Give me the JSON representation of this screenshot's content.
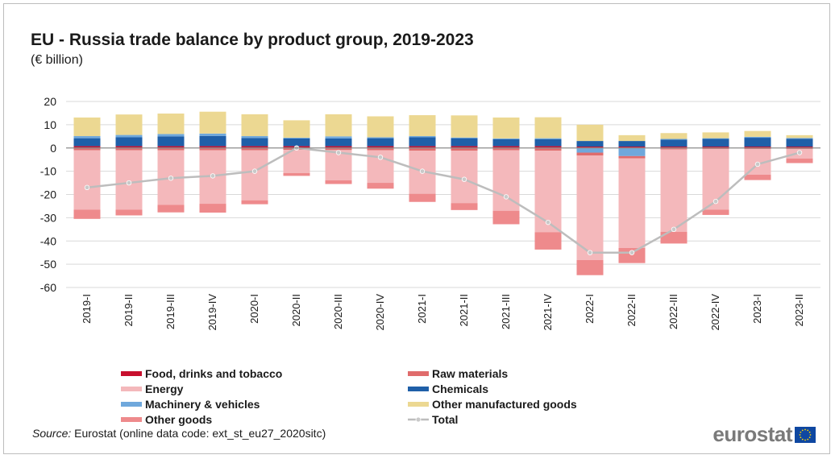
{
  "header": {
    "title": "EU - Russia trade balance by product group, 2019-2023",
    "subtitle": "(€ billion)"
  },
  "source": {
    "label": "Source:",
    "text": " Eurostat (online data code: ext_st_eu27_2020sitc)"
  },
  "logo": {
    "text": "eurostat",
    "flag_icon": "eu-flag-icon"
  },
  "chart_data": {
    "type": "bar",
    "stacked": true,
    "title": "EU - Russia trade balance by product group, 2019-2023",
    "subtitle": "(€ billion)",
    "xlabel": "",
    "ylabel": "",
    "ylim": [
      -60,
      20
    ],
    "yticks": [
      20,
      10,
      0,
      -10,
      -20,
      -30,
      -40,
      -50,
      -60
    ],
    "grid": true,
    "legend_position": "bottom",
    "categories": [
      "2019-I",
      "2019-II",
      "2019-III",
      "2019-IV",
      "2020-I",
      "2020-II",
      "2020-III",
      "2020-IV",
      "2021-I",
      "2021-II",
      "2021-III",
      "2021-IV",
      "2022-I",
      "2022-II",
      "2022-III",
      "2022-IV",
      "2023-I",
      "2023-II"
    ],
    "series": [
      {
        "name": "Food, drinks and tobacco",
        "kind": "bar",
        "color": "#c8102e",
        "values": [
          0.8,
          0.8,
          0.8,
          0.8,
          0.8,
          0.8,
          0.8,
          0.8,
          0.8,
          0.8,
          0.8,
          0.8,
          0.6,
          0.6,
          0.6,
          0.6,
          0.6,
          0.6
        ]
      },
      {
        "name": "Chemicals",
        "kind": "bar",
        "color": "#1f5fa8",
        "values": [
          3.4,
          3.8,
          4.2,
          4.4,
          3.5,
          3.3,
          3.3,
          3.4,
          3.8,
          3.4,
          3.0,
          3.0,
          2.4,
          2.4,
          3.0,
          3.3,
          3.8,
          3.4
        ]
      },
      {
        "name": "Machinery & vehicles",
        "kind": "bar",
        "color": "#6fa8dc",
        "values": [
          0.9,
          1.0,
          1.0,
          1.0,
          0.8,
          0.3,
          0.9,
          0.4,
          0.5,
          0.3,
          0.3,
          0.4,
          -2.0,
          -3.5,
          0.3,
          0.3,
          0.4,
          0.3
        ]
      },
      {
        "name": "Other manufactured goods",
        "kind": "bar",
        "color": "#ecd892",
        "values": [
          8.0,
          8.8,
          8.8,
          9.4,
          9.4,
          7.5,
          9.5,
          9.0,
          9.0,
          9.5,
          9.0,
          9.0,
          7.0,
          2.5,
          2.5,
          2.5,
          2.5,
          1.2
        ]
      },
      {
        "name": "Raw materials",
        "kind": "bar",
        "color": "#e06c6c",
        "values": [
          -1.0,
          -1.0,
          -1.0,
          -1.0,
          -1.0,
          -0.8,
          -0.9,
          -1.0,
          -1.2,
          -1.2,
          -1.0,
          -1.2,
          -1.2,
          -1.0,
          -0.6,
          -0.5,
          -0.5,
          -0.5
        ]
      },
      {
        "name": "Energy",
        "kind": "bar",
        "color": "#f4b8bb",
        "values": [
          -25.5,
          -25.5,
          -23.5,
          -23.0,
          -21.5,
          -10.0,
          -13.0,
          -14.0,
          -18.5,
          -22.5,
          -26.0,
          -35.0,
          -45.0,
          -38.5,
          -35.5,
          -26.0,
          -11.0,
          -4.0
        ]
      },
      {
        "name": "Other goods",
        "kind": "bar",
        "color": "#ee8a8c",
        "values": [
          -4.0,
          -2.5,
          -3.2,
          -3.8,
          -1.7,
          -1.2,
          -1.6,
          -2.5,
          -3.5,
          -3.0,
          -5.8,
          -7.5,
          -6.5,
          -6.5,
          -5.0,
          -2.3,
          -2.3,
          -2.0
        ]
      },
      {
        "name": "Total",
        "kind": "line",
        "color": "#bdbdbd",
        "values": [
          -17,
          -15,
          -13,
          -12,
          -10,
          0,
          -2,
          -4,
          -10,
          -13.5,
          -21,
          -32,
          -45,
          -45,
          -35,
          -23,
          -7,
          -2
        ]
      }
    ]
  }
}
